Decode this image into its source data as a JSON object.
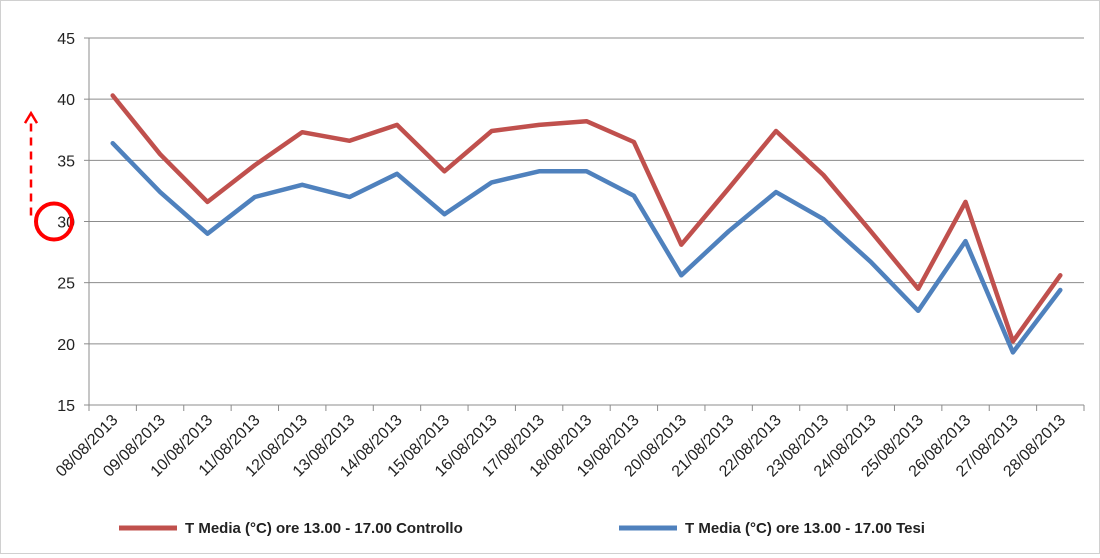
{
  "chart_data": {
    "type": "line",
    "title": "",
    "xlabel": "",
    "ylabel": "",
    "ylim": [
      15,
      45
    ],
    "yticks": [
      15,
      20,
      25,
      30,
      35,
      40,
      45
    ],
    "grid": true,
    "legend_position": "bottom",
    "categories": [
      "08/08/2013",
      "09/08/2013",
      "10/08/2013",
      "11/08/2013",
      "12/08/2013",
      "13/08/2013",
      "14/08/2013",
      "15/08/2013",
      "16/08/2013",
      "17/08/2013",
      "18/08/2013",
      "19/08/2013",
      "20/08/2013",
      "21/08/2013",
      "22/08/2013",
      "23/08/2013",
      "24/08/2013",
      "25/08/2013",
      "26/08/2013",
      "27/08/2013",
      "28/08/2013"
    ],
    "series": [
      {
        "name": "T Media (°C) ore 13.00 - 17.00 Controllo",
        "color": "#c0504d",
        "values": [
          40.3,
          35.5,
          31.6,
          34.6,
          37.3,
          36.6,
          37.9,
          34.1,
          37.4,
          37.9,
          38.2,
          36.5,
          28.1,
          32.7,
          37.4,
          33.8,
          29.2,
          24.5,
          31.6,
          20.2,
          25.6
        ]
      },
      {
        "name": "T Media (°C) ore 13.00 - 17.00  Tesi",
        "color": "#4f81bd",
        "values": [
          36.4,
          32.4,
          29.0,
          32.0,
          33.0,
          32.0,
          33.9,
          30.6,
          33.2,
          34.1,
          34.1,
          32.1,
          25.6,
          29.2,
          32.4,
          30.2,
          26.7,
          22.7,
          28.4,
          19.3,
          24.4
        ]
      }
    ],
    "annotation": {
      "marker_value": 30,
      "arrow_from": 30,
      "arrow_to": 40,
      "color": "#ff0000"
    }
  }
}
